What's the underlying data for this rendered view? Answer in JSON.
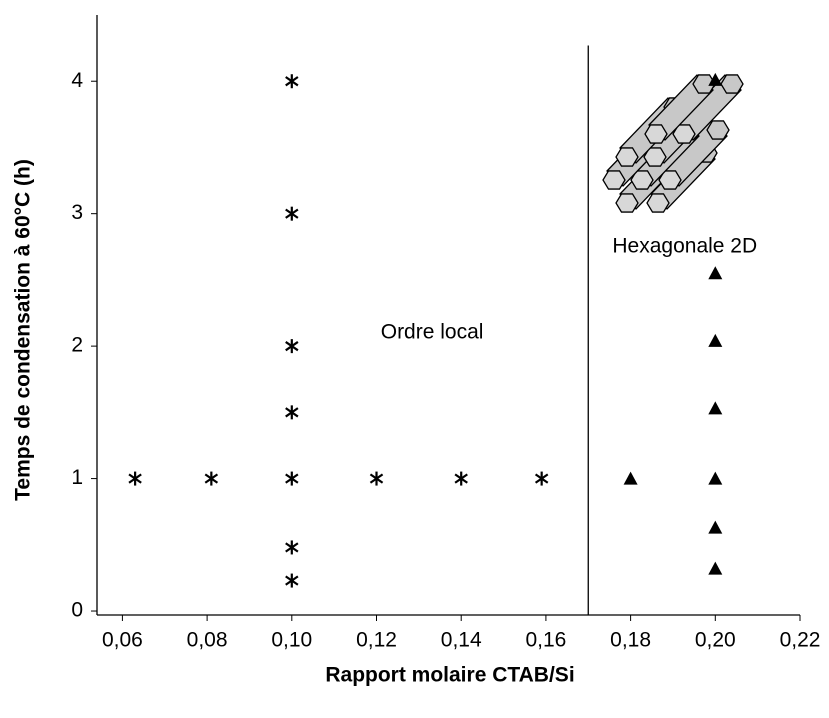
{
  "chart_data": {
    "type": "scatter",
    "xlabel": "Rapport molaire CTAB/Si",
    "ylabel": "Temps de condensation à 60°C (h)",
    "xlim": [
      0.054,
      0.22
    ],
    "ylim": [
      -0.03,
      4.5
    ],
    "xticks": [
      {
        "value": 0.06,
        "label": "0,06"
      },
      {
        "value": 0.08,
        "label": "0,08"
      },
      {
        "value": 0.1,
        "label": "0,10"
      },
      {
        "value": 0.12,
        "label": "0,12"
      },
      {
        "value": 0.14,
        "label": "0,14"
      },
      {
        "value": 0.16,
        "label": "0,16"
      },
      {
        "value": 0.18,
        "label": "0,18"
      },
      {
        "value": 0.2,
        "label": "0,20"
      },
      {
        "value": 0.22,
        "label": "0,22"
      }
    ],
    "yticks": [
      0,
      1,
      2,
      3,
      4
    ],
    "series": [
      {
        "marker": "asterisk",
        "color": "#000000",
        "x": [
          0.063,
          0.081,
          0.1,
          0.12,
          0.14,
          0.159,
          0.1,
          0.1,
          0.1,
          0.1,
          0.1,
          0.1
        ],
        "values": [
          1,
          1,
          1,
          1,
          1,
          1,
          0.23,
          0.48,
          1.5,
          2,
          3,
          4
        ]
      },
      {
        "marker": "triangle",
        "color": "#000000",
        "x": [
          0.18,
          0.2,
          0.2,
          0.2,
          0.2,
          0.2,
          0.2,
          0.2
        ],
        "values": [
          1,
          0.32,
          0.63,
          1,
          1.53,
          2.04,
          2.55,
          4.01
        ]
      }
    ],
    "divider_x": 0.17,
    "annotations": [
      {
        "text": "Ordre local",
        "x": 0.121,
        "y": 2.1
      },
      {
        "text": "Hexagonale 2D",
        "x": 0.1757,
        "y": 2.75
      }
    ]
  }
}
